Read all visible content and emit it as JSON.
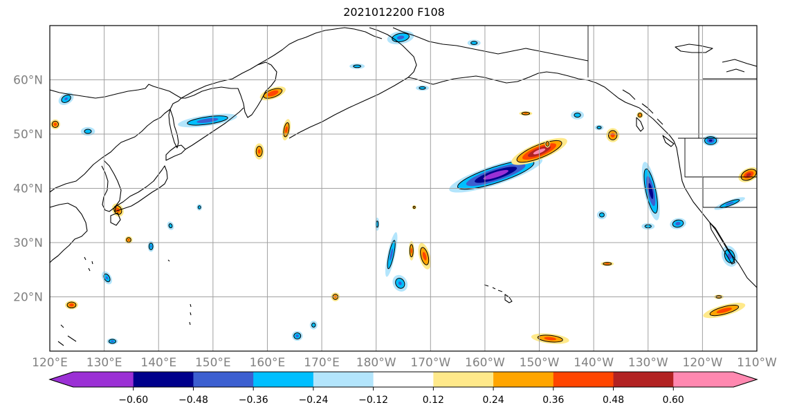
{
  "title": "2021012200 F108",
  "map": {
    "projection": "equirectangular",
    "lon_range": [
      120,
      250
    ],
    "lat_range": [
      10,
      70
    ],
    "gridlines": true,
    "lon_ticks": [
      {
        "lon": 120,
        "label": "120°E"
      },
      {
        "lon": 130,
        "label": "130°E"
      },
      {
        "lon": 140,
        "label": "140°E"
      },
      {
        "lon": 150,
        "label": "150°E"
      },
      {
        "lon": 160,
        "label": "160°E"
      },
      {
        "lon": 170,
        "label": "170°E"
      },
      {
        "lon": 180,
        "label": "180°W"
      },
      {
        "lon": 190,
        "label": "170°W"
      },
      {
        "lon": 200,
        "label": "160°W"
      },
      {
        "lon": 210,
        "label": "150°W"
      },
      {
        "lon": 220,
        "label": "140°W"
      },
      {
        "lon": 230,
        "label": "130°W"
      },
      {
        "lon": 240,
        "label": "120°W"
      },
      {
        "lon": 250,
        "label": "110°W"
      }
    ],
    "lat_ticks": [
      {
        "lat": 20,
        "label": "20°N"
      },
      {
        "lat": 30,
        "label": "30°N"
      },
      {
        "lat": 40,
        "label": "40°N"
      },
      {
        "lat": 50,
        "label": "50°N"
      },
      {
        "lat": 60,
        "label": "60°N"
      }
    ],
    "colors": {
      "coast": "#000000",
      "grid": "#a0a0a0",
      "tick_label": "#808080"
    },
    "anomalies": [
      {
        "lon": 202,
        "lat": 42.5,
        "rx": 9,
        "ry": 1.8,
        "rot": -18,
        "value": -0.66
      },
      {
        "lon": 210,
        "lat": 46.8,
        "rx": 5.5,
        "ry": 1.5,
        "rot": -22,
        "value": 0.62
      },
      {
        "lon": 230.5,
        "lat": 39.5,
        "rx": 1.2,
        "ry": 5.5,
        "rot": -12,
        "value": -0.52
      },
      {
        "lon": 244,
        "lat": 17.5,
        "rx": 4,
        "ry": 1.0,
        "rot": -15,
        "value": 0.42
      },
      {
        "lon": 212,
        "lat": 12.3,
        "rx": 3.5,
        "ry": 0.9,
        "rot": 6,
        "value": 0.4
      },
      {
        "lon": 149,
        "lat": 52.5,
        "rx": 5.5,
        "ry": 1.0,
        "rot": -8,
        "value": -0.42
      },
      {
        "lon": 123,
        "lat": 56.5,
        "rx": 1.5,
        "ry": 1.0,
        "rot": -30,
        "value": -0.36
      },
      {
        "lon": 127,
        "lat": 50.5,
        "rx": 1.3,
        "ry": 0.8,
        "rot": 0,
        "value": -0.3
      },
      {
        "lon": 161,
        "lat": 57.5,
        "rx": 2.5,
        "ry": 1.0,
        "rot": -20,
        "value": 0.46
      },
      {
        "lon": 163.5,
        "lat": 50.8,
        "rx": 0.7,
        "ry": 2.0,
        "rot": 10,
        "value": 0.4
      },
      {
        "lon": 158.5,
        "lat": 46.8,
        "rx": 0.9,
        "ry": 1.5,
        "rot": 0,
        "value": 0.38
      },
      {
        "lon": 182.8,
        "lat": 27.8,
        "rx": 0.7,
        "ry": 4.2,
        "rot": 12,
        "value": -0.38
      },
      {
        "lon": 184.4,
        "lat": 22.5,
        "rx": 1.3,
        "ry": 1.6,
        "rot": -30,
        "value": -0.36
      },
      {
        "lon": 188.9,
        "lat": 27.5,
        "rx": 1.0,
        "ry": 2.5,
        "rot": -15,
        "value": 0.4
      },
      {
        "lon": 186.5,
        "lat": 28.5,
        "rx": 0.5,
        "ry": 1.8,
        "rot": 0,
        "value": 0.38
      },
      {
        "lon": 180.2,
        "lat": 33.4,
        "rx": 0.4,
        "ry": 1.2,
        "rot": 0,
        "value": -0.3
      },
      {
        "lon": 172.5,
        "lat": 20.0,
        "rx": 0.8,
        "ry": 0.8,
        "rot": 0,
        "value": 0.36
      },
      {
        "lon": 165.5,
        "lat": 12.8,
        "rx": 1.0,
        "ry": 0.9,
        "rot": 0,
        "value": -0.38
      },
      {
        "lon": 168.5,
        "lat": 14.8,
        "rx": 0.7,
        "ry": 0.8,
        "rot": 0,
        "value": -0.3
      },
      {
        "lon": 211.5,
        "lat": 48.2,
        "rx": 0.5,
        "ry": 0.7,
        "rot": 0,
        "value": 0.36
      },
      {
        "lon": 223.5,
        "lat": 49.8,
        "rx": 1.2,
        "ry": 1.3,
        "rot": 0,
        "value": 0.4
      },
      {
        "lon": 207.5,
        "lat": 53.8,
        "rx": 1.2,
        "ry": 0.4,
        "rot": 0,
        "value": 0.36
      },
      {
        "lon": 217,
        "lat": 53.5,
        "rx": 1.2,
        "ry": 0.8,
        "rot": 0,
        "value": -0.3
      },
      {
        "lon": 221,
        "lat": 51.2,
        "rx": 0.8,
        "ry": 0.5,
        "rot": 0,
        "value": -0.3
      },
      {
        "lon": 221.5,
        "lat": 35.1,
        "rx": 0.9,
        "ry": 0.8,
        "rot": 0,
        "value": -0.3
      },
      {
        "lon": 230,
        "lat": 33.0,
        "rx": 1.2,
        "ry": 0.6,
        "rot": 0,
        "value": -0.3
      },
      {
        "lon": 235.5,
        "lat": 33.5,
        "rx": 1.5,
        "ry": 1.0,
        "rot": -10,
        "value": -0.4
      },
      {
        "lon": 245,
        "lat": 27.5,
        "rx": 1.4,
        "ry": 2.0,
        "rot": -20,
        "value": -0.38
      },
      {
        "lon": 248.5,
        "lat": 42.5,
        "rx": 2.0,
        "ry": 1.2,
        "rot": -25,
        "value": 0.5
      },
      {
        "lon": 245,
        "lat": 37.2,
        "rx": 3.0,
        "ry": 0.6,
        "rot": -20,
        "value": -0.38
      },
      {
        "lon": 241.5,
        "lat": 48.8,
        "rx": 1.5,
        "ry": 1.0,
        "rot": 0,
        "value": -0.48
      },
      {
        "lon": 138.6,
        "lat": 29.3,
        "rx": 0.6,
        "ry": 1.0,
        "rot": 0,
        "value": -0.36
      },
      {
        "lon": 142.2,
        "lat": 33.1,
        "rx": 0.6,
        "ry": 0.8,
        "rot": -20,
        "value": -0.3
      },
      {
        "lon": 132.5,
        "lat": 36.0,
        "rx": 1.0,
        "ry": 1.3,
        "rot": -30,
        "value": 0.4
      },
      {
        "lon": 124,
        "lat": 18.5,
        "rx": 1.2,
        "ry": 0.8,
        "rot": 0,
        "value": 0.42
      },
      {
        "lon": 130.5,
        "lat": 23.5,
        "rx": 0.8,
        "ry": 1.3,
        "rot": -30,
        "value": -0.36
      },
      {
        "lon": 131.5,
        "lat": 11.8,
        "rx": 1.0,
        "ry": 0.6,
        "rot": 0,
        "value": -0.38
      },
      {
        "lon": 121,
        "lat": 51.8,
        "rx": 0.9,
        "ry": 0.9,
        "rot": 0,
        "value": 0.4
      },
      {
        "lon": 243,
        "lat": 20.0,
        "rx": 0.9,
        "ry": 0.4,
        "rot": 0,
        "value": 0.36
      },
      {
        "lon": 187,
        "lat": 36.5,
        "rx": 0.4,
        "ry": 0.4,
        "rot": 0,
        "value": 0.3
      },
      {
        "lon": 188.5,
        "lat": 58.5,
        "rx": 1.2,
        "ry": 0.5,
        "rot": 0,
        "value": -0.3
      },
      {
        "lon": 176.5,
        "lat": 62.5,
        "rx": 1.4,
        "ry": 0.5,
        "rot": 0,
        "value": -0.3
      },
      {
        "lon": 184.5,
        "lat": 67.8,
        "rx": 2.5,
        "ry": 1.2,
        "rot": -10,
        "value": -0.38
      },
      {
        "lon": 198,
        "lat": 66.8,
        "rx": 1.2,
        "ry": 0.6,
        "rot": 0,
        "value": -0.3
      },
      {
        "lon": 147.5,
        "lat": 36.5,
        "rx": 0.5,
        "ry": 0.6,
        "rot": 0,
        "value": -0.3
      },
      {
        "lon": 222.5,
        "lat": 26.1,
        "rx": 1.2,
        "ry": 0.4,
        "rot": 0,
        "value": 0.38
      },
      {
        "lon": 134.5,
        "lat": 30.5,
        "rx": 0.7,
        "ry": 0.7,
        "rot": 0,
        "value": 0.36
      },
      {
        "lon": 228.5,
        "lat": 53.5,
        "rx": 0.6,
        "ry": 0.6,
        "rot": 0,
        "value": 0.36
      }
    ]
  },
  "colorbar": {
    "colors": [
      "#9b30d5",
      "#00008b",
      "#3c5fd0",
      "#00bfff",
      "#b3e5fc",
      "#ffffff",
      "#ffe98a",
      "#ffa500",
      "#ff4500",
      "#b22222",
      "#ff88b0"
    ],
    "labels": [
      "−0.60",
      "−0.48",
      "−0.36",
      "−0.24",
      "−0.12",
      "0.12",
      "0.24",
      "0.36",
      "0.48",
      "0.60"
    ],
    "thresholds": [
      -0.6,
      -0.48,
      -0.36,
      -0.24,
      -0.12,
      0.12,
      0.24,
      0.36,
      0.48,
      0.6
    ],
    "extend": "both"
  }
}
